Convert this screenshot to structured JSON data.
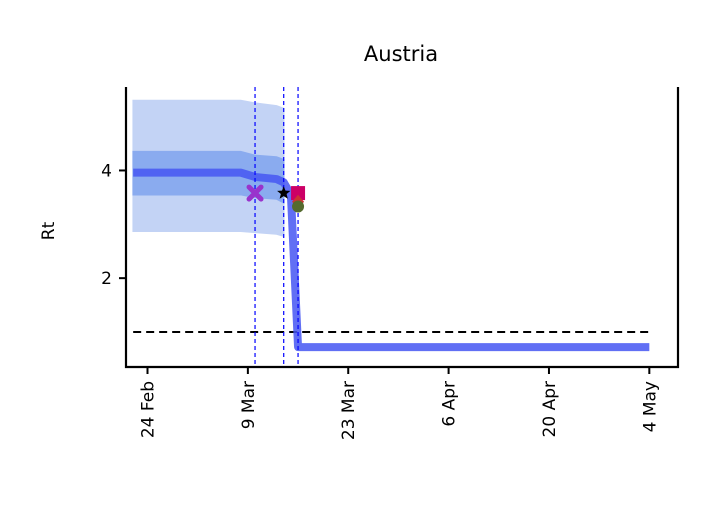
{
  "chart_data": {
    "type": "line",
    "title": "Austria",
    "xlabel": "",
    "ylabel": "Rt",
    "x_ticks": [
      {
        "date": "2020-02-24",
        "label": "24 Feb"
      },
      {
        "date": "2020-03-09",
        "label": "9 Mar"
      },
      {
        "date": "2020-03-23",
        "label": "23 Mar"
      },
      {
        "date": "2020-04-06",
        "label": "6 Apr"
      },
      {
        "date": "2020-04-20",
        "label": "20 Apr"
      },
      {
        "date": "2020-05-04",
        "label": "4 May"
      }
    ],
    "y_ticks": [
      2,
      4
    ],
    "xlim": [
      "2020-02-21",
      "2020-05-08"
    ],
    "ylim": [
      0.35,
      5.55
    ],
    "threshold": 1.0,
    "series": [
      {
        "band": "outer",
        "color": "#c3d3f5",
        "points": [
          {
            "date": "2020-02-22",
            "low": 2.87,
            "high": 5.3
          },
          {
            "date": "2020-03-08",
            "low": 2.87,
            "high": 5.3
          },
          {
            "date": "2020-03-10",
            "low": 2.85,
            "high": 5.25
          },
          {
            "date": "2020-03-13",
            "low": 2.82,
            "high": 5.2
          },
          {
            "date": "2020-03-14",
            "low": 2.78,
            "high": 5.15
          }
        ]
      },
      {
        "band": "inner",
        "color": "#8aabef",
        "points": [
          {
            "date": "2020-02-22",
            "low": 3.55,
            "high": 4.35
          },
          {
            "date": "2020-03-08",
            "low": 3.55,
            "high": 4.35
          },
          {
            "date": "2020-03-10",
            "low": 3.5,
            "high": 4.28
          },
          {
            "date": "2020-03-13",
            "low": 3.47,
            "high": 4.25
          },
          {
            "date": "2020-03-14",
            "low": 3.4,
            "high": 4.2
          }
        ]
      },
      {
        "band": "median",
        "color": "#4556f2",
        "points": [
          {
            "date": "2020-02-22",
            "value": 3.96
          },
          {
            "date": "2020-03-08",
            "value": 3.96
          },
          {
            "date": "2020-03-10",
            "value": 3.88
          },
          {
            "date": "2020-03-13",
            "value": 3.84
          },
          {
            "date": "2020-03-14",
            "value": 3.78
          },
          {
            "date": "2020-03-15",
            "value": 3.55
          },
          {
            "date": "2020-03-16",
            "value": 0.72
          },
          {
            "date": "2020-05-04",
            "value": 0.72
          }
        ]
      }
    ],
    "interventions": [
      {
        "date": "2020-03-10",
        "color": "#0000ff"
      },
      {
        "date": "2020-03-14",
        "color": "#0000ff"
      },
      {
        "date": "2020-03-16",
        "color": "#0000ff"
      }
    ],
    "markers": [
      {
        "date": "2020-03-10",
        "value": 3.58,
        "shape": "x-bold",
        "color": "#9933cc"
      },
      {
        "date": "2020-03-14",
        "value": 3.58,
        "shape": "star",
        "color": "#000000"
      },
      {
        "date": "2020-03-16",
        "value": 3.58,
        "shape": "square",
        "color": "#cc0066"
      },
      {
        "date": "2020-03-16",
        "value": 3.42,
        "shape": "diamond",
        "color": "#cc3333"
      },
      {
        "date": "2020-03-16",
        "value": 3.33,
        "shape": "circle",
        "color": "#556b2f"
      }
    ]
  }
}
